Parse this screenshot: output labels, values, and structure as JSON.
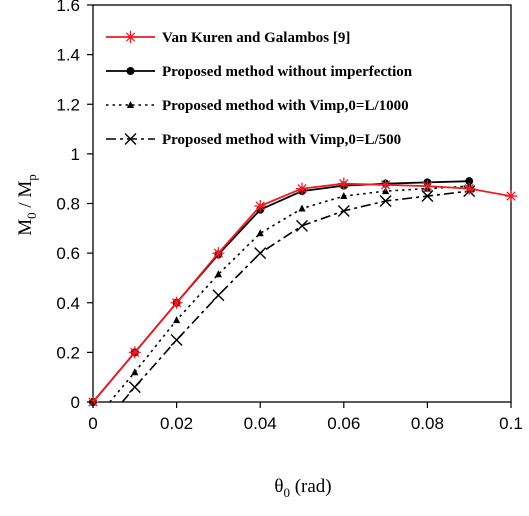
{
  "chart_data": {
    "type": "line",
    "xlabel": {
      "main": "θ",
      "sub": "0",
      "unit": " (rad)"
    },
    "ylabel": {
      "num": "M",
      "num_sub": "0",
      "sep": " / ",
      "den": "M",
      "den_sub": "p"
    },
    "xlim": [
      0,
      0.1
    ],
    "ylim": [
      0,
      1.6
    ],
    "x_ticks": [
      {
        "value": 0,
        "label": "0"
      },
      {
        "value": 0.02,
        "label": "0.02"
      },
      {
        "value": 0.04,
        "label": "0.04"
      },
      {
        "value": 0.06,
        "label": "0.06"
      },
      {
        "value": 0.08,
        "label": "0.08"
      },
      {
        "value": 0.1,
        "label": "0.1"
      }
    ],
    "y_ticks": [
      {
        "value": 0,
        "label": "0"
      },
      {
        "value": 0.2,
        "label": "0.2"
      },
      {
        "value": 0.4,
        "label": "0.4"
      },
      {
        "value": 0.6,
        "label": "0.6"
      },
      {
        "value": 0.8,
        "label": "0.8"
      },
      {
        "value": 1.0,
        "label": "1"
      },
      {
        "value": 1.2,
        "label": "1.2"
      },
      {
        "value": 1.4,
        "label": "1.4"
      },
      {
        "value": 1.6,
        "label": "1.6"
      }
    ],
    "grid": false,
    "legend_position": "top-left",
    "series": [
      {
        "name": "Van Kuren and Galambos [9]",
        "color": "#ee1c24",
        "line": "solid",
        "marker": "asterisk",
        "line_points": [
          [
            0,
            0
          ],
          [
            0.01,
            0.2
          ],
          [
            0.02,
            0.4
          ],
          [
            0.03,
            0.6
          ],
          [
            0.04,
            0.79
          ],
          [
            0.05,
            0.86
          ],
          [
            0.06,
            0.88
          ],
          [
            0.07,
            0.875
          ],
          [
            0.08,
            0.87
          ],
          [
            0.09,
            0.86
          ],
          [
            0.1,
            0.83
          ]
        ],
        "marker_points": [
          [
            0,
            0
          ],
          [
            0.01,
            0.2
          ],
          [
            0.02,
            0.4
          ],
          [
            0.03,
            0.6
          ],
          [
            0.04,
            0.79
          ],
          [
            0.05,
            0.86
          ],
          [
            0.06,
            0.88
          ],
          [
            0.07,
            0.875
          ],
          [
            0.08,
            0.87
          ],
          [
            0.09,
            0.86
          ],
          [
            0.1,
            0.83
          ]
        ]
      },
      {
        "name": "Proposed method without imperfection",
        "color": "#000000",
        "line": "solid",
        "marker": "circle",
        "line_points": [
          [
            0,
            0
          ],
          [
            0.01,
            0.2
          ],
          [
            0.02,
            0.4
          ],
          [
            0.03,
            0.595
          ],
          [
            0.04,
            0.775
          ],
          [
            0.05,
            0.85
          ],
          [
            0.06,
            0.872
          ],
          [
            0.07,
            0.88
          ],
          [
            0.08,
            0.885
          ],
          [
            0.09,
            0.89
          ],
          [
            0.0905,
            0.855
          ]
        ],
        "marker_points": [
          [
            0,
            0
          ],
          [
            0.01,
            0.2
          ],
          [
            0.02,
            0.4
          ],
          [
            0.03,
            0.595
          ],
          [
            0.04,
            0.775
          ],
          [
            0.05,
            0.85
          ],
          [
            0.06,
            0.872
          ],
          [
            0.07,
            0.88
          ],
          [
            0.08,
            0.885
          ],
          [
            0.09,
            0.89
          ]
        ]
      },
      {
        "name": "Proposed method with Vimp,0=L/1000",
        "color": "#000000",
        "line": "dotted",
        "marker": "triangle",
        "line_points": [
          [
            0.004,
            0
          ],
          [
            0.01,
            0.12
          ],
          [
            0.02,
            0.33
          ],
          [
            0.03,
            0.515
          ],
          [
            0.04,
            0.68
          ],
          [
            0.05,
            0.78
          ],
          [
            0.06,
            0.83
          ],
          [
            0.07,
            0.85
          ],
          [
            0.08,
            0.86
          ],
          [
            0.09,
            0.87
          ],
          [
            0.0915,
            0.85
          ]
        ],
        "marker_points": [
          [
            0.01,
            0.12
          ],
          [
            0.02,
            0.33
          ],
          [
            0.03,
            0.515
          ],
          [
            0.04,
            0.68
          ],
          [
            0.05,
            0.78
          ],
          [
            0.06,
            0.83
          ],
          [
            0.07,
            0.85
          ],
          [
            0.08,
            0.86
          ],
          [
            0.09,
            0.87
          ]
        ]
      },
      {
        "name": "Proposed method with Vimp,0=L/500",
        "color": "#000000",
        "line": "dashdot",
        "marker": "x",
        "line_points": [
          [
            0.007,
            0
          ],
          [
            0.01,
            0.06
          ],
          [
            0.02,
            0.25
          ],
          [
            0.03,
            0.43
          ],
          [
            0.04,
            0.6
          ],
          [
            0.05,
            0.71
          ],
          [
            0.06,
            0.77
          ],
          [
            0.07,
            0.81
          ],
          [
            0.08,
            0.83
          ],
          [
            0.09,
            0.85
          ],
          [
            0.092,
            0.85
          ]
        ],
        "marker_points": [
          [
            0.01,
            0.06
          ],
          [
            0.02,
            0.25
          ],
          [
            0.03,
            0.43
          ],
          [
            0.04,
            0.6
          ],
          [
            0.05,
            0.71
          ],
          [
            0.06,
            0.77
          ],
          [
            0.07,
            0.81
          ],
          [
            0.08,
            0.83
          ],
          [
            0.09,
            0.85
          ]
        ]
      }
    ]
  }
}
